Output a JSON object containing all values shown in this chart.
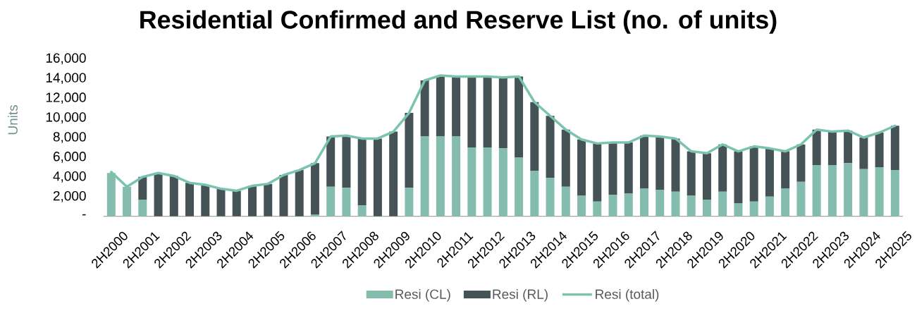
{
  "chart_data": {
    "type": "bar",
    "stacked": true,
    "title": "Residential Confirmed and Reserve List (no. of units)",
    "ylabel": "Units",
    "categories": [
      "2H2000",
      null,
      "2H2001",
      null,
      "2H2002",
      null,
      "2H2003",
      null,
      "2H2004",
      null,
      "2H2005",
      null,
      "2H2006",
      null,
      "2H2007",
      null,
      "2H2008",
      null,
      "2H2009",
      null,
      "2H2010",
      null,
      "2H2011",
      null,
      "2H2012",
      null,
      "2H2013",
      null,
      "2H2014",
      null,
      "2H2015",
      null,
      "2H2016",
      null,
      "2H2017",
      null,
      "2H2018",
      null,
      "2H2019",
      null,
      "2H2020",
      null,
      "2H2021",
      null,
      "2H2022",
      null,
      "2H2023",
      null,
      "2H2024",
      null,
      "2H2025"
    ],
    "series": [
      {
        "name": "Resi (CL)",
        "color": "#84bdad",
        "values": [
          4400,
          3000,
          1700,
          0,
          0,
          0,
          0,
          0,
          0,
          0,
          0,
          0,
          0,
          200,
          3000,
          2900,
          1100,
          0,
          0,
          2900,
          8100,
          8100,
          8100,
          7000,
          7000,
          6900,
          6000,
          4600,
          3900,
          3000,
          2100,
          1500,
          2200,
          2300,
          2800,
          2700,
          2500,
          2100,
          1700,
          2500,
          1300,
          1500,
          2000,
          2800,
          3500,
          5200,
          5200,
          5400,
          4800,
          5000,
          4700
        ]
      },
      {
        "name": "Resi (RL)",
        "color": "#455357",
        "values": [
          0,
          0,
          2300,
          4400,
          4100,
          3400,
          3200,
          2800,
          2600,
          3100,
          3300,
          4200,
          4700,
          5200,
          5100,
          5300,
          6800,
          7900,
          8600,
          7600,
          5700,
          6200,
          6100,
          7200,
          7200,
          7200,
          8200,
          7000,
          6300,
          5800,
          5700,
          5900,
          5300,
          5200,
          5400,
          5400,
          5400,
          4500,
          4700,
          4800,
          5300,
          5600,
          4900,
          3800,
          3800,
          3600,
          3400,
          3300,
          3200,
          3500,
          4500
        ]
      },
      {
        "name": "Resi (total)",
        "type": "line",
        "color": "#7cc3af",
        "values": [
          4500,
          3000,
          4000,
          4400,
          4100,
          3400,
          3200,
          2800,
          2600,
          3100,
          3300,
          4200,
          4700,
          5400,
          8100,
          8200,
          7900,
          7900,
          8600,
          10500,
          13800,
          14300,
          14200,
          14200,
          14200,
          14100,
          14200,
          11600,
          10200,
          8800,
          7800,
          7400,
          7500,
          7500,
          8200,
          8100,
          7900,
          6600,
          6400,
          7300,
          6600,
          7100,
          6900,
          6600,
          7300,
          8800,
          8600,
          8700,
          8000,
          8500,
          9200
        ]
      }
    ],
    "ylim": [
      0,
      16000
    ],
    "yticks": [
      {
        "value": 0,
        "label": "-"
      },
      {
        "value": 2000,
        "label": "2,000"
      },
      {
        "value": 4000,
        "label": "4,000"
      },
      {
        "value": 6000,
        "label": "6,000"
      },
      {
        "value": 8000,
        "label": "8,000"
      },
      {
        "value": 10000,
        "label": "10,000"
      },
      {
        "value": 12000,
        "label": "12,000"
      },
      {
        "value": 14000,
        "label": "14,000"
      },
      {
        "value": 16000,
        "label": "16,000"
      }
    ],
    "grid": false,
    "legend": "bottom",
    "marker": "none"
  }
}
